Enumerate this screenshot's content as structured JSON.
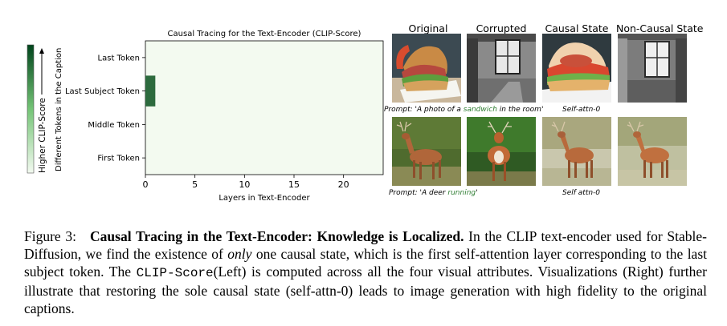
{
  "chart_data": {
    "type": "heatmap",
    "title": "Causal Tracing for the Text-Encoder (CLIP-Score)",
    "xlabel": "Layers in Text-Encoder",
    "ylabel": "Different Tokens in the Caption",
    "colorbar_label": "Higher CLIP-Score",
    "rows": [
      "Last Token",
      "Last Subject Token",
      "Middle Token",
      "First Token"
    ],
    "x_ticks": [
      0,
      5,
      10,
      15,
      20
    ],
    "n_layers": 24,
    "cells": [
      {
        "row": "Last Subject Token",
        "layer": 0,
        "value": 1.0
      }
    ],
    "background_value": 0.05,
    "colors": {
      "low": "#f3faf0",
      "high": "#00441b",
      "mid": "#2d6b3e"
    }
  },
  "panel": {
    "columns": [
      "Original",
      "Corrupted",
      "Causal State",
      "Non-Causal State"
    ],
    "row1": {
      "prompt_prefix": "Prompt: 'A photo of a ",
      "prompt_highlight": "sandwich",
      "prompt_suffix": " in the room'",
      "state_label": "Self-attn-0"
    },
    "row2": {
      "prompt_prefix": "Prompt: 'A deer ",
      "prompt_highlight": "running",
      "prompt_suffix": "'",
      "state_label": "Self attn-0"
    }
  },
  "caption": {
    "label": "Figure 3:",
    "title": "Causal Tracing in the Text-Encoder: Knowledge is Localized.",
    "text1": " In the CLIP text-encoder used for Stable-Diffusion, we find the existence of ",
    "emph": "only",
    "text2": " one causal state, which is the first self-attention layer corresponding to the last subject token. The ",
    "mono": "CLIP-Score",
    "text3": "(Left) is computed across all the four visual attributes. Visualizations (Right) further illustrate that restoring the sole causal state (self-attn-0) leads to image generation with high fidelity to the original captions."
  }
}
